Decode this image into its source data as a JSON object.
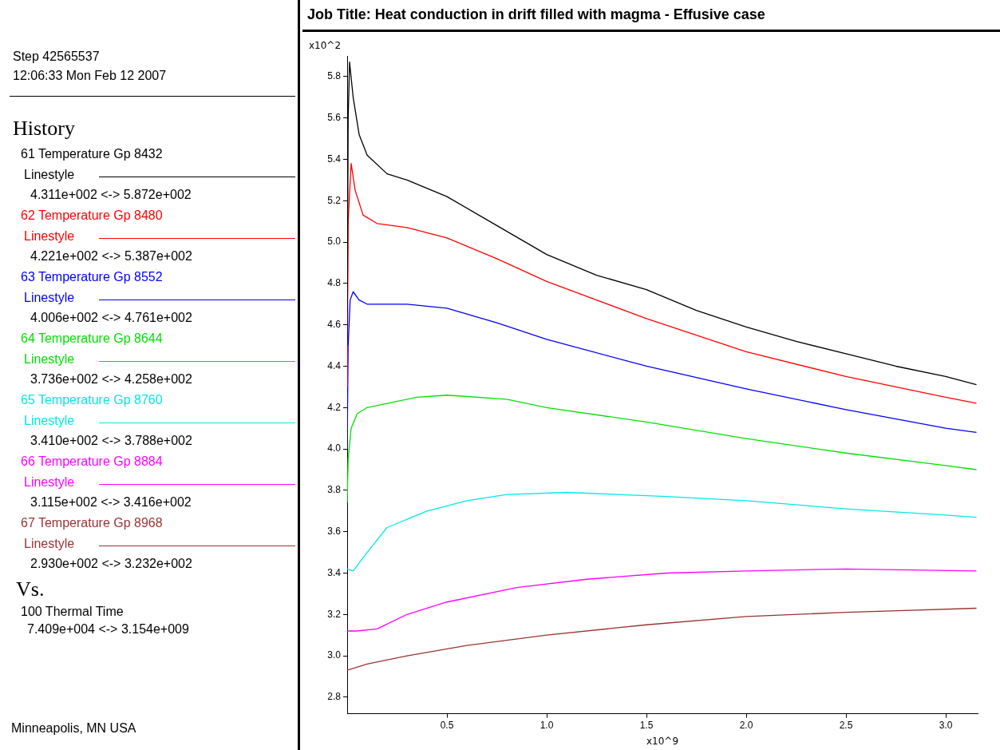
{
  "chart_data": {
    "type": "line",
    "title": "Job Title: Heat conduction in drift filled with magma - Effusive case",
    "xlabel": "x10^9",
    "ylabel": "x10^2",
    "legend_title": "History",
    "legend": "left",
    "line_style": "solid",
    "marker": "none",
    "xlim": [
      0,
      3.16
    ],
    "ylim": [
      2.72,
      5.9
    ],
    "xticks": [
      0.5,
      {
        "value": 1,
        "label": "1.0"
      },
      1.5,
      {
        "value": 2,
        "label": "2.0"
      },
      2.5,
      {
        "value": 3,
        "label": "3.0"
      }
    ],
    "yticks": [
      2.8,
      {
        "value": 3,
        "label": "3.0"
      },
      3.2,
      3.4,
      3.6,
      3.8,
      {
        "value": 4,
        "label": "4.0"
      },
      4.2,
      4.4,
      4.6,
      4.8,
      {
        "value": 5,
        "label": "5.0"
      },
      5.2,
      5.4,
      5.6,
      5.8
    ],
    "annotations": [
      "Step 42565537",
      "12:06:33 Mon Feb 12 2007",
      "Linestyle",
      "4.311e+002 <-> 5.872e+002",
      "Linestyle",
      "4.221e+002 <-> 5.387e+002",
      "Linestyle",
      "4.006e+002 <-> 4.761e+002",
      "Linestyle",
      "3.736e+002 <-> 4.258e+002",
      "Linestyle",
      "3.410e+002 <-> 3.788e+002",
      "Linestyle",
      "3.115e+002 <-> 3.416e+002",
      "Linestyle",
      "2.930e+002 <-> 3.232e+002",
      "Vs.",
      "100 Thermal Time",
      "7.409e+004 <-> 3.154e+009",
      "Minneapolis, MN USA"
    ],
    "series": [
      {
        "name": "61 Temperature Gp 8432",
        "color": "#000000",
        "x": [
          7e-05,
          0.005,
          0.012,
          0.03,
          0.06,
          0.1,
          0.2,
          0.3,
          0.5,
          0.75,
          1.0,
          1.25,
          1.5,
          1.75,
          2.0,
          2.25,
          2.5,
          2.75,
          3.0,
          3.154
        ],
        "values": [
          4.5,
          5.6,
          5.87,
          5.7,
          5.52,
          5.42,
          5.33,
          5.3,
          5.22,
          5.08,
          4.94,
          4.84,
          4.77,
          4.67,
          4.59,
          4.52,
          4.46,
          4.4,
          4.35,
          4.311
        ]
      },
      {
        "name": "62 Temperature Gp 8480",
        "color": "#ff0000",
        "x": [
          7e-05,
          0.005,
          0.02,
          0.04,
          0.08,
          0.15,
          0.3,
          0.5,
          0.75,
          1.0,
          1.25,
          1.5,
          1.75,
          2.0,
          2.5,
          3.0,
          3.154
        ],
        "values": [
          4.3,
          5.1,
          5.38,
          5.25,
          5.13,
          5.09,
          5.07,
          5.02,
          4.92,
          4.81,
          4.72,
          4.63,
          4.55,
          4.47,
          4.35,
          4.25,
          4.221
        ]
      },
      {
        "name": "63 Temperature Gp 8552",
        "color": "#0000ff",
        "x": [
          7e-05,
          0.005,
          0.015,
          0.03,
          0.06,
          0.1,
          0.3,
          0.5,
          0.75,
          1.0,
          1.5,
          2.0,
          2.5,
          3.0,
          3.154
        ],
        "values": [
          4.0,
          4.5,
          4.72,
          4.76,
          4.72,
          4.7,
          4.7,
          4.68,
          4.61,
          4.53,
          4.4,
          4.29,
          4.19,
          4.1,
          4.08
        ]
      },
      {
        "name": "64 Temperature Gp 8644",
        "color": "#00e000",
        "x": [
          7e-05,
          0.005,
          0.02,
          0.05,
          0.1,
          0.2,
          0.35,
          0.5,
          0.8,
          1.0,
          1.5,
          2.0,
          2.5,
          3.0,
          3.154
        ],
        "values": [
          3.74,
          3.95,
          4.1,
          4.17,
          4.2,
          4.22,
          4.25,
          4.26,
          4.24,
          4.2,
          4.13,
          4.05,
          3.98,
          3.92,
          3.9
        ]
      },
      {
        "name": "65 Temperature Gp 8760",
        "color": "#00e8e8",
        "x": [
          7e-05,
          0.03,
          0.1,
          0.2,
          0.4,
          0.6,
          0.8,
          1.1,
          1.6,
          2.0,
          2.5,
          3.0,
          3.154
        ],
        "values": [
          3.42,
          3.41,
          3.5,
          3.62,
          3.7,
          3.75,
          3.78,
          3.79,
          3.77,
          3.75,
          3.71,
          3.68,
          3.67
        ]
      },
      {
        "name": "66 Temperature Gp 8884",
        "color": "#ff00ff",
        "x": [
          7e-05,
          0.05,
          0.15,
          0.3,
          0.5,
          0.85,
          1.2,
          1.6,
          2.0,
          2.5,
          3.154
        ],
        "values": [
          3.12,
          3.12,
          3.13,
          3.2,
          3.26,
          3.33,
          3.37,
          3.4,
          3.41,
          3.42,
          3.41
        ]
      },
      {
        "name": "67 Temperature Gp 8968",
        "color": "#993333",
        "x": [
          7e-05,
          0.1,
          0.3,
          0.6,
          1.0,
          1.5,
          2.0,
          2.5,
          3.154
        ],
        "values": [
          2.93,
          2.96,
          3.0,
          3.05,
          3.1,
          3.15,
          3.19,
          3.21,
          3.23
        ]
      }
    ]
  }
}
